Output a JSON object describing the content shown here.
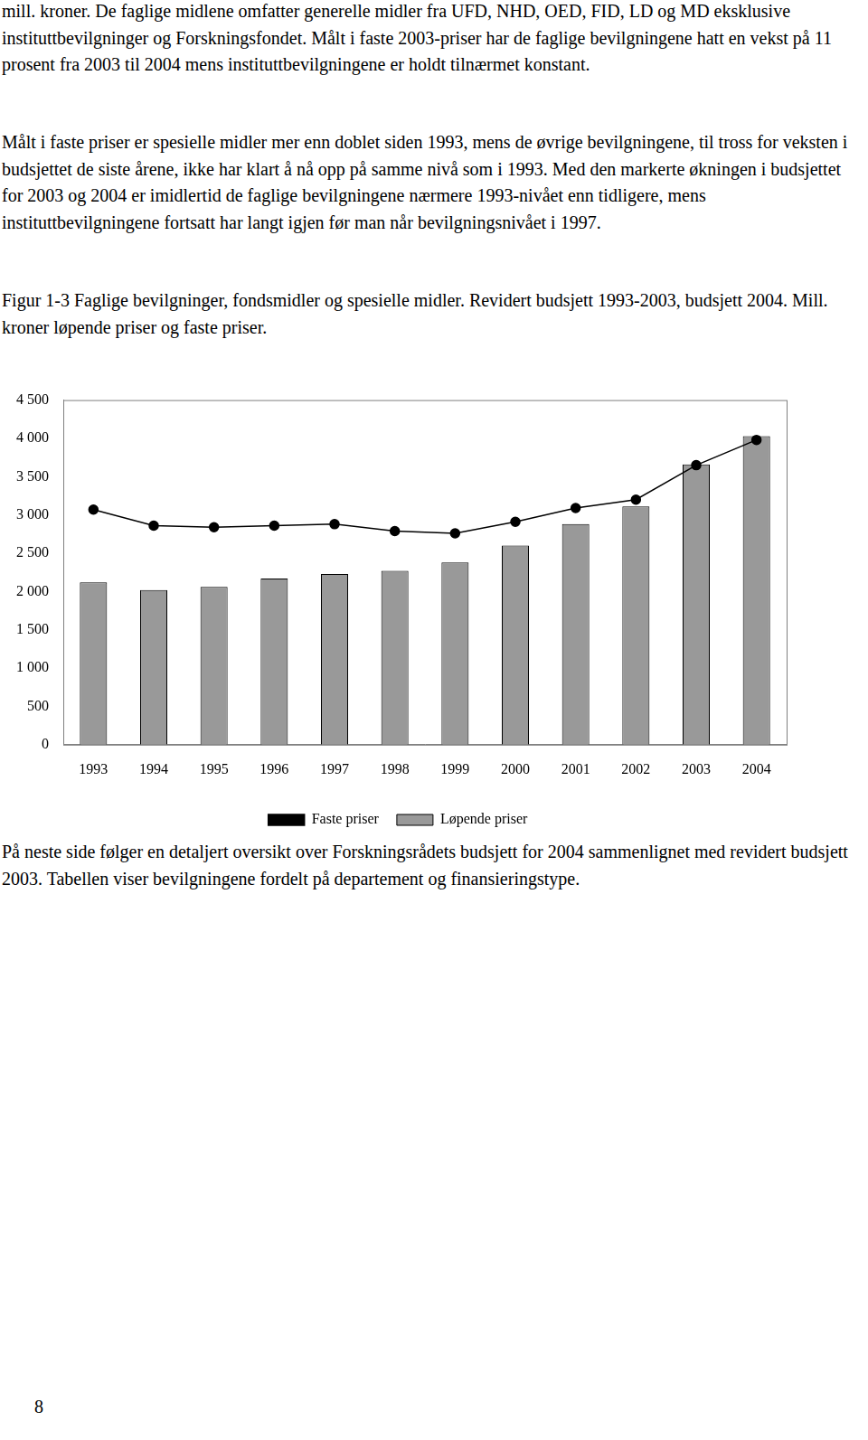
{
  "text": {
    "paragraphs": [
      "mill. kroner. De faglige midlene omfatter generelle midler fra UFD, NHD, OED, FID, LD og MD eksklusive instituttbevilgninger og Forskningsfondet. Målt i faste 2003-priser har de faglige bevilgningene hatt en vekst på 11 prosent fra 2003 til 2004 mens instituttbevilgningene er holdt tilnærmet konstant.",
      "Målt i faste priser er spesielle midler mer enn doblet siden 1993, mens de øvrige bevilgningene, til tross for veksten i budsjettet de siste årene, ikke har klart å nå opp på samme nivå som i 1993. Med den markerte økningen i budsjettet for 2003 og 2004 er imidlertid de faglige bevilgningene nærmere 1993-nivået enn tidligere, mens instituttbevilgningene fortsatt har langt igjen før man når bevilgningsnivået i 1997."
    ],
    "caption": "Figur 1-3 Faglige bevilgninger, fondsmidler og spesielle midler. Revidert budsjett 1993-2003, budsjett 2004. Mill. kroner løpende priser og faste priser.",
    "after_chart": "På neste side følger en detaljert oversikt over Forskningsrådets budsjett for 2004 sammenlignet med revidert budsjett 2003. Tabellen viser bevilgningene fordelt på departement og finansieringstype.",
    "page_number": "8"
  },
  "chart_data": {
    "type": "bar",
    "categories": [
      "1993",
      "1994",
      "1995",
      "1996",
      "1997",
      "1998",
      "1999",
      "2000",
      "2001",
      "2002",
      "2003",
      "2004"
    ],
    "series": [
      {
        "name": "Løpende priser",
        "type": "bar",
        "color": "#999999",
        "values": [
          2120,
          2020,
          2060,
          2170,
          2230,
          2270,
          2380,
          2600,
          2880,
          3110,
          3660,
          4030
        ]
      },
      {
        "name": "Faste priser",
        "type": "line",
        "color": "#000000",
        "marker": "circle",
        "line_style": "solid",
        "values": [
          3070,
          2860,
          2840,
          2860,
          2880,
          2790,
          2760,
          2910,
          3090,
          3200,
          3650,
          3980
        ]
      }
    ],
    "ylim": [
      0,
      4500
    ],
    "yticks": [
      0,
      500,
      {
        "value": 1000,
        "label": "1 000"
      },
      {
        "value": 1500,
        "label": "1 500"
      },
      {
        "value": 2000,
        "label": "2 000"
      },
      {
        "value": 2500,
        "label": "2 500"
      },
      {
        "value": 3000,
        "label": "3 000"
      },
      {
        "value": 3500,
        "label": "3 500"
      },
      {
        "value": 4000,
        "label": "4 000"
      },
      {
        "value": 4500,
        "label": "4 500"
      }
    ],
    "grid": false,
    "legend": "bottom"
  }
}
